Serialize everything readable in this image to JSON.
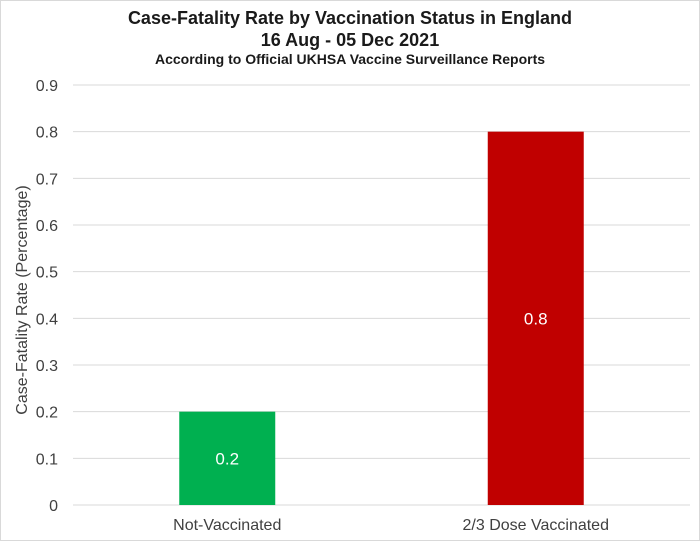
{
  "chart_data": {
    "type": "bar",
    "title": "Case-Fatality Rate by Vaccination Status in England",
    "title_line2": "16 Aug - 05 Dec 2021",
    "subtitle": "According to Official UKHSA Vaccine Surveillance Reports",
    "xlabel": "",
    "ylabel": "Case-Fatality Rate (Percentage)",
    "ylim": [
      0,
      0.9
    ],
    "yticks": [
      "0",
      "0.1",
      "0.2",
      "0.3",
      "0.4",
      "0.5",
      "0.6",
      "0.7",
      "0.8",
      "0.9"
    ],
    "categories": [
      "Not-Vaccinated",
      "2/3 Dose Vaccinated"
    ],
    "values": [
      0.2,
      0.8
    ],
    "data_labels": [
      "0.2",
      "0.8"
    ],
    "colors": [
      "#00b050",
      "#c00000"
    ],
    "grid": true,
    "legend": "none"
  },
  "colors": {
    "gridline": "#d9d9d9",
    "text": "#404040",
    "title": "#1a1a1a"
  }
}
